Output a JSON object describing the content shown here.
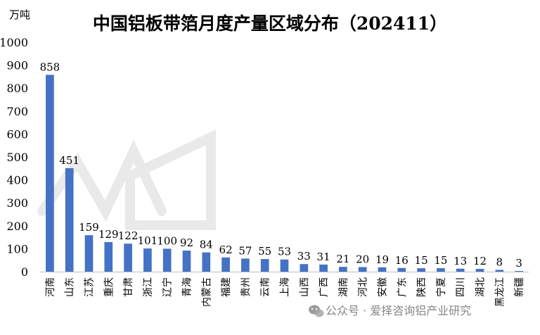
{
  "chart_data": {
    "type": "bar",
    "title": "中国铝板带箔月度产量区域分布（202411）",
    "unit_label": "万吨",
    "ylim": [
      0,
      1000
    ],
    "yticks": [
      0,
      100,
      200,
      300,
      400,
      500,
      600,
      700,
      800,
      900,
      1000
    ],
    "grid": false,
    "legend": "none",
    "bar_color": "#4472C4",
    "categories": [
      "河南",
      "山东",
      "江苏",
      "重庆",
      "甘肃",
      "浙江",
      "辽宁",
      "青海",
      "内蒙古",
      "福建",
      "贵州",
      "云南",
      "上海",
      "山西",
      "广西",
      "湖南",
      "河北",
      "安徽",
      "广东",
      "陕西",
      "宁夏",
      "四川",
      "湖北",
      "黑龙江",
      "新疆"
    ],
    "values": [
      858,
      451,
      159,
      129,
      122,
      101,
      100,
      92,
      84,
      62,
      57,
      55,
      53,
      33,
      31,
      21,
      20,
      19,
      16,
      15,
      15,
      13,
      12,
      8,
      3
    ]
  },
  "watermark": {
    "text": "公众号 · 爱择咨询铝产业研究",
    "icon": "wechat-icon"
  }
}
